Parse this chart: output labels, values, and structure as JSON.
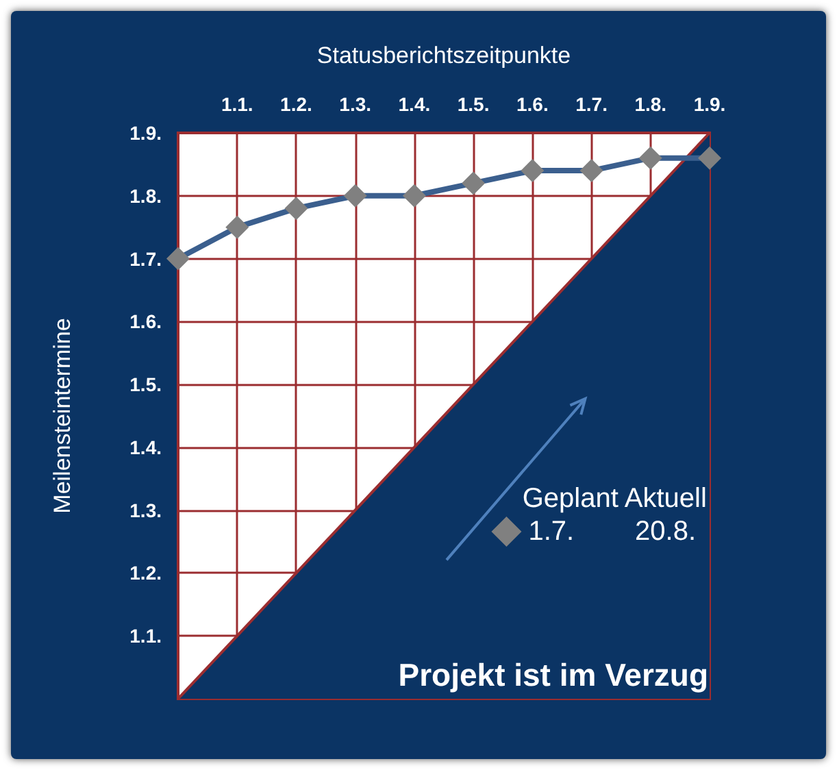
{
  "chart_data": {
    "type": "line",
    "xlabel": "Statusberichtszeitpunkte",
    "ylabel": "Meilensteintermine",
    "legend_title": "Geplant Aktuell",
    "annotations": [
      "Projekt ist im Verzug"
    ],
    "xlim": [
      1.0,
      1.9
    ],
    "ylim": [
      1.0,
      1.9
    ],
    "xticks": [
      {
        "value": 1.0,
        "label": null
      },
      {
        "value": 1.1,
        "label": "1.1."
      },
      {
        "value": 1.2,
        "label": "1.2."
      },
      {
        "value": 1.3,
        "label": "1.3."
      },
      {
        "value": 1.4,
        "label": "1.4."
      },
      {
        "value": 1.5,
        "label": "1.5."
      },
      {
        "value": 1.6,
        "label": "1.6."
      },
      {
        "value": 1.7,
        "label": "1.7."
      },
      {
        "value": 1.8,
        "label": "1.8."
      },
      {
        "value": 1.9,
        "label": "1.9."
      }
    ],
    "yticks": [
      {
        "value": 1.0,
        "label": null
      },
      {
        "value": 1.1,
        "label": "1.1."
      },
      {
        "value": 1.2,
        "label": "1.2."
      },
      {
        "value": 1.3,
        "label": "1.3."
      },
      {
        "value": 1.4,
        "label": "1.4."
      },
      {
        "value": 1.5,
        "label": "1.5."
      },
      {
        "value": 1.6,
        "label": "1.6."
      },
      {
        "value": 1.7,
        "label": "1.7."
      },
      {
        "value": 1.8,
        "label": "1.8."
      },
      {
        "value": 1.9,
        "label": "1.9."
      }
    ],
    "grid": true,
    "legend": "bottom right",
    "series": [
      {
        "type": "area",
        "color": "#0b3464",
        "x": [
          1.0,
          1.9
        ],
        "values": [
          1.0,
          1.9
        ]
      },
      {
        "name": "1.7.        20.8.",
        "marker": "diamond",
        "color": "#3b5f8e",
        "colors": [
          "#808080",
          "#808080",
          "#808080",
          "#808080",
          "#808080",
          "#808080",
          "#808080",
          "#808080",
          "#808080",
          "#808080"
        ],
        "x": [
          1.0,
          1.1,
          1.2,
          1.3,
          1.4,
          1.5,
          1.6,
          1.7,
          1.8,
          1.9
        ],
        "values": [
          1.7,
          1.75,
          1.78,
          1.8,
          1.8,
          1.82,
          1.84,
          1.84,
          1.86,
          1.86
        ]
      }
    ]
  }
}
